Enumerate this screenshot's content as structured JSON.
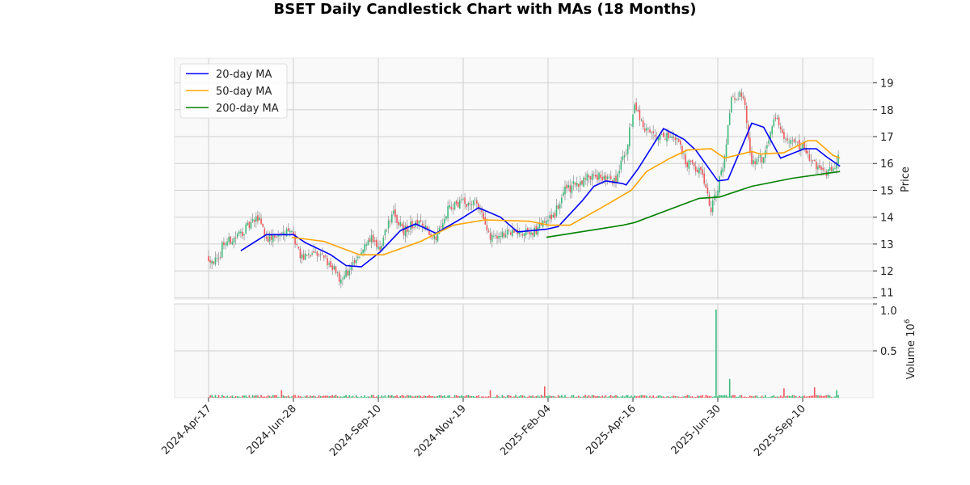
{
  "chart_data": {
    "type": "candlestick",
    "title": "BSET Daily Candlestick Chart with MAs (18 Months)",
    "ylabel": "Price",
    "volume_label": "Volume",
    "volume_exponent": "10",
    "volume_exponent_power": "6",
    "ylim": [
      10.95,
      19.92
    ],
    "yticks": [
      11,
      12,
      13,
      14,
      15,
      16,
      17,
      18,
      19
    ],
    "volume_ylim": [
      0,
      1.0
    ],
    "volume_yticks": [
      {
        "v": 0.5,
        "label": "0.5"
      },
      {
        "v": 1.0,
        "label": "1.0"
      }
    ],
    "n_days": 372,
    "xticks": [
      {
        "i": 0,
        "label": "2024-Apr-17"
      },
      {
        "i": 50,
        "label": "2024-Jun-28"
      },
      {
        "i": 100,
        "label": "2024-Sep-10"
      },
      {
        "i": 150,
        "label": "2024-Nov-19"
      },
      {
        "i": 200,
        "label": "2025-Feb-04"
      },
      {
        "i": 250,
        "label": "2025-Apr-16"
      },
      {
        "i": 300,
        "label": "2025-Jun-30"
      },
      {
        "i": 350,
        "label": "2025-Sep-10"
      }
    ],
    "close_path": [
      [
        0,
        12.5
      ],
      [
        6,
        12.3
      ],
      [
        8,
        13.0
      ],
      [
        15,
        13.2
      ],
      [
        30,
        14.0
      ],
      [
        34,
        13.2
      ],
      [
        41,
        13.3
      ],
      [
        48,
        13.5
      ],
      [
        55,
        12.5
      ],
      [
        63,
        12.6
      ],
      [
        72,
        12.3
      ],
      [
        77,
        11.7
      ],
      [
        87,
        12.3
      ],
      [
        94,
        13.3
      ],
      [
        101,
        12.8
      ],
      [
        108,
        14.2
      ],
      [
        115,
        13.5
      ],
      [
        122,
        13.8
      ],
      [
        134,
        13.3
      ],
      [
        141,
        14.3
      ],
      [
        146,
        14.5
      ],
      [
        158,
        14.6
      ],
      [
        165,
        13.3
      ],
      [
        177,
        13.4
      ],
      [
        191,
        13.4
      ],
      [
        197,
        13.8
      ],
      [
        203,
        14.0
      ],
      [
        210,
        15.0
      ],
      [
        227,
        15.6
      ],
      [
        239,
        15.3
      ],
      [
        246,
        16.5
      ],
      [
        251,
        18.2
      ],
      [
        256,
        17.4
      ],
      [
        265,
        17.0
      ],
      [
        275,
        17.0
      ],
      [
        282,
        16.0
      ],
      [
        291,
        15.6
      ],
      [
        296,
        14.3
      ],
      [
        303,
        15.8
      ],
      [
        308,
        18.3
      ],
      [
        315,
        18.6
      ],
      [
        320,
        16.0
      ],
      [
        327,
        16.2
      ],
      [
        333,
        17.8
      ],
      [
        341,
        16.8
      ],
      [
        351,
        16.6
      ],
      [
        356,
        16.0
      ],
      [
        363,
        15.6
      ],
      [
        368,
        15.8
      ],
      [
        371,
        16.3
      ]
    ],
    "series": [
      {
        "name": "20-day MA",
        "color": "#0000ff",
        "points": [
          [
            19,
            12.75
          ],
          [
            34,
            13.35
          ],
          [
            50,
            13.35
          ],
          [
            57,
            13.05
          ],
          [
            72,
            12.6
          ],
          [
            81,
            12.2
          ],
          [
            90,
            12.15
          ],
          [
            101,
            12.7
          ],
          [
            113,
            13.5
          ],
          [
            122,
            13.75
          ],
          [
            134,
            13.4
          ],
          [
            149,
            13.95
          ],
          [
            159,
            14.35
          ],
          [
            172,
            14.0
          ],
          [
            182,
            13.45
          ],
          [
            199,
            13.55
          ],
          [
            206,
            13.65
          ],
          [
            220,
            14.6
          ],
          [
            227,
            15.15
          ],
          [
            234,
            15.35
          ],
          [
            244,
            15.25
          ],
          [
            246,
            15.2
          ],
          [
            253,
            15.8
          ],
          [
            268,
            17.3
          ],
          [
            280,
            16.9
          ],
          [
            287,
            16.5
          ],
          [
            300,
            15.35
          ],
          [
            306,
            15.4
          ],
          [
            320,
            17.5
          ],
          [
            327,
            17.35
          ],
          [
            337,
            16.2
          ],
          [
            351,
            16.55
          ],
          [
            358,
            16.55
          ],
          [
            364,
            16.25
          ],
          [
            372,
            15.9
          ]
        ]
      },
      {
        "name": "50-day MA",
        "color": "#ffa500",
        "points": [
          [
            49,
            13.25
          ],
          [
            68,
            13.1
          ],
          [
            89,
            12.6
          ],
          [
            103,
            12.6
          ],
          [
            125,
            13.1
          ],
          [
            144,
            13.7
          ],
          [
            163,
            13.9
          ],
          [
            189,
            13.85
          ],
          [
            201,
            13.7
          ],
          [
            213,
            13.7
          ],
          [
            230,
            14.3
          ],
          [
            249,
            15.0
          ],
          [
            258,
            15.7
          ],
          [
            272,
            16.2
          ],
          [
            282,
            16.5
          ],
          [
            296,
            16.55
          ],
          [
            304,
            16.2
          ],
          [
            320,
            16.45
          ],
          [
            325,
            16.35
          ],
          [
            339,
            16.4
          ],
          [
            353,
            16.85
          ],
          [
            358,
            16.85
          ],
          [
            368,
            16.3
          ],
          [
            372,
            16.2
          ]
        ]
      },
      {
        "name": "200-day MA",
        "color": "#008000",
        "points": [
          [
            199,
            13.25
          ],
          [
            244,
            13.7
          ],
          [
            251,
            13.8
          ],
          [
            272,
            14.3
          ],
          [
            289,
            14.7
          ],
          [
            301,
            14.75
          ],
          [
            320,
            15.15
          ],
          [
            344,
            15.45
          ],
          [
            372,
            15.7
          ]
        ]
      }
    ],
    "up_color": "#3dbb7a",
    "down_color": "#f0585c",
    "volume_spikes": [
      [
        43,
        0.08
      ],
      [
        166,
        0.08
      ],
      [
        198,
        0.12
      ],
      [
        299,
        0.94
      ],
      [
        307,
        0.2
      ],
      [
        339,
        0.1
      ],
      [
        357,
        0.11
      ],
      [
        370,
        0.08
      ]
    ],
    "legend_position": "top-left",
    "grid": true
  }
}
